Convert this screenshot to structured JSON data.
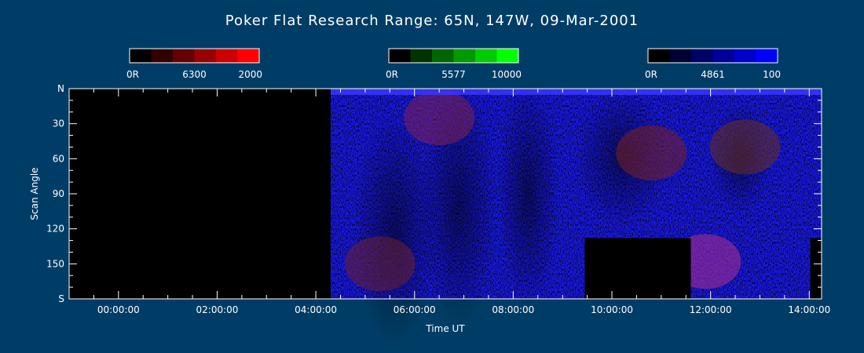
{
  "title": "Poker Flat Research Range: 65N, 147W, 09-Mar-2001",
  "chart_data": {
    "type": "heatmap",
    "title": "Poker Flat Research Range: 65N, 147W, 09-Mar-2001",
    "xlabel": "Time UT",
    "ylabel": "Scan Angle",
    "x_ticks": [
      "00:00:00",
      "02:00:00",
      "04:00:00",
      "06:00:00",
      "08:00:00",
      "10:00:00",
      "12:00:00",
      "14:00:00"
    ],
    "x_tick_hours": [
      0,
      2,
      4,
      6,
      8,
      10,
      12,
      14
    ],
    "xlim_hours": [
      -1.0,
      14.25
    ],
    "y_ticks": [
      "N",
      "30",
      "60",
      "90",
      "120",
      "150",
      "S"
    ],
    "y_tick_values": [
      0,
      30,
      60,
      90,
      120,
      150,
      180
    ],
    "ylim": [
      0,
      180
    ],
    "grid": false,
    "colorbars": [
      {
        "wavelength": "6300",
        "min_label": "0R",
        "max_label": "2000",
        "color": "#ff0000",
        "steps": [
          "#000000",
          "#330000",
          "#660000",
          "#990000",
          "#cc0000",
          "#ff0000"
        ]
      },
      {
        "wavelength": "5577",
        "min_label": "0R",
        "max_label": "10000",
        "color": "#00ff00",
        "steps": [
          "#000000",
          "#003300",
          "#006600",
          "#009900",
          "#00cc00",
          "#00ff00"
        ]
      },
      {
        "wavelength": "4861",
        "min_label": "0R",
        "max_label": "100",
        "color": "#0000ff",
        "steps": [
          "#000000",
          "#000033",
          "#000066",
          "#000099",
          "#0000cc",
          "#0000ff"
        ]
      }
    ],
    "no_data_intervals_hours": [
      [
        -1.0,
        4.3
      ]
    ],
    "data_gaps": [
      {
        "t_start": 9.45,
        "t_end": 11.6,
        "angle_start": 128,
        "angle_end": 180
      },
      {
        "t_start": 14.02,
        "t_end": 14.25,
        "angle_start": 128,
        "angle_end": 180
      }
    ],
    "emission_features": [
      {
        "t_center": 5.3,
        "angle_center": 150,
        "color": "#6a2030"
      },
      {
        "t_center": 6.5,
        "angle_center": 25,
        "color": "#802050"
      },
      {
        "t_center": 10.8,
        "angle_center": 55,
        "color": "#7a2020"
      },
      {
        "t_center": 12.7,
        "angle_center": 50,
        "color": "#6a3020"
      },
      {
        "t_center": 11.9,
        "angle_center": 148,
        "color": "#b03090"
      }
    ]
  }
}
